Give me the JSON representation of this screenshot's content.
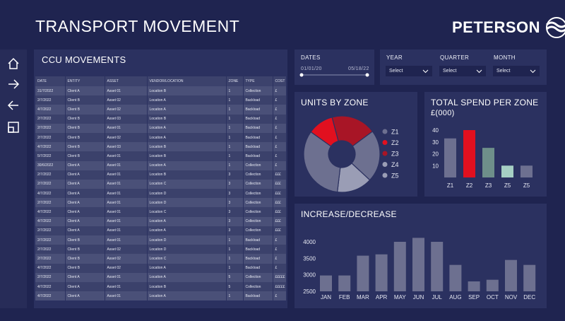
{
  "header": {
    "title": "TRANSPORT MOVEMENT",
    "brand": "PETERSON"
  },
  "nav": {
    "items": [
      "home-icon",
      "arrow-right-icon",
      "arrow-left-icon",
      "layout-icon"
    ]
  },
  "ccu": {
    "title": "CCU MOVEMENTS",
    "columns": [
      "DATE",
      "ENTITY",
      "ASSET",
      "VENDOR/LOCATION",
      "ZONE",
      "TYPE",
      "COST"
    ],
    "rows": [
      [
        "31/7/2022",
        "Client A",
        "Asset 01",
        "Location B",
        "1",
        "Collection",
        "£"
      ],
      [
        "2/7/2022",
        "Client B",
        "Asset 02",
        "Location A",
        "1",
        "Backload",
        "£"
      ],
      [
        "4/7/2022",
        "Client B",
        "Asset 02",
        "Location A",
        "1",
        "Backload",
        "£"
      ],
      [
        "2/7/2022",
        "Client B",
        "Asset 03",
        "Location B",
        "1",
        "Backload",
        "£"
      ],
      [
        "2/7/2022",
        "Client B",
        "Asset 01",
        "Location A",
        "1",
        "Backload",
        "£"
      ],
      [
        "2/7/2022",
        "Client B",
        "Asset 02",
        "Location A",
        "1",
        "Backload",
        "£"
      ],
      [
        "4/7/2022",
        "Client B",
        "Asset 03",
        "Location B",
        "1",
        "Backload",
        "£"
      ],
      [
        "5/7/2022",
        "Client B",
        "Asset 01",
        "Location B",
        "1",
        "Backload",
        "£"
      ],
      [
        "30/6/2022",
        "Client A",
        "Asset 01",
        "Location A",
        "1",
        "Collection",
        "£"
      ],
      [
        "2/7/2022",
        "Client A",
        "Asset 01",
        "Location B",
        "3",
        "Collection",
        "£££"
      ],
      [
        "2/7/2022",
        "Client A",
        "Asset 01",
        "Location C",
        "3",
        "Collection",
        "£££"
      ],
      [
        "4/7/2022",
        "Client A",
        "Asset 01",
        "Location D",
        "3",
        "Collection",
        "£££"
      ],
      [
        "2/7/2022",
        "Client A",
        "Asset 01",
        "Location D",
        "3",
        "Collection",
        "£££"
      ],
      [
        "4/7/2022",
        "Client A",
        "Asset 01",
        "Location C",
        "3",
        "Collection",
        "£££"
      ],
      [
        "4/7/2022",
        "Client A",
        "Asset 01",
        "Location A",
        "3",
        "Collection",
        "£££"
      ],
      [
        "2/7/2022",
        "Client A",
        "Asset 01",
        "Location A",
        "3",
        "Collection",
        "£££"
      ],
      [
        "2/7/2022",
        "Client B",
        "Asset 01",
        "Location D",
        "1",
        "Backload",
        "£"
      ],
      [
        "2/7/2022",
        "Client B",
        "Asset 02",
        "Location D",
        "1",
        "Backload",
        "£"
      ],
      [
        "2/7/2022",
        "Client B",
        "Asset 02",
        "Location C",
        "1",
        "Backload",
        "£"
      ],
      [
        "4/7/2022",
        "Client B",
        "Asset 02",
        "Location A",
        "1",
        "Backload",
        "£"
      ],
      [
        "2/7/2022",
        "Client A",
        "Asset 01",
        "Location A",
        "5",
        "Collection",
        "£££££"
      ],
      [
        "4/7/2022",
        "Client A",
        "Asset 01",
        "Location B",
        "5",
        "Collection",
        "£££££"
      ],
      [
        "4/7/2022",
        "Client A",
        "Asset 01",
        "Location A",
        "1",
        "Backload",
        "£"
      ]
    ]
  },
  "dates": {
    "label": "DATES",
    "start": "01/01/20",
    "end": "05/18/22"
  },
  "filters": {
    "year": {
      "label": "YEAR",
      "value": "Select"
    },
    "quarter": {
      "label": "QUARTER",
      "value": "Select"
    },
    "month": {
      "label": "MONTH",
      "value": "Select"
    }
  },
  "colors": {
    "bg": "#1f2450",
    "panel": "#2b3160",
    "red": "#e1101f",
    "darkred": "#a81526",
    "grey": "#6d7090",
    "lightgrey": "#9a9db5",
    "green": "#6e8f8a",
    "mint": "#a6cfc4"
  },
  "chart_data": [
    {
      "type": "pie",
      "title": "UNITS BY ZONE",
      "categories": [
        "Z1",
        "Z2",
        "Z3",
        "Z4",
        "Z5"
      ],
      "values": [
        33,
        11,
        19,
        15,
        22
      ],
      "legend_colors": [
        "#6d7090",
        "#e1101f",
        "#a81526",
        "#9a9db5",
        "#9a9db5"
      ],
      "legend": "right"
    },
    {
      "type": "bar",
      "title": "TOTAL SPEND PER ZONE",
      "subtitle": "£(000)",
      "categories": [
        "Z1",
        "Z2",
        "Z3",
        "Z5",
        "Z5"
      ],
      "values": [
        33,
        40,
        25,
        10,
        10
      ],
      "colors": [
        "#6d7090",
        "#e1101f",
        "#6e8f8a",
        "#a6cfc4",
        "#6d7090"
      ],
      "ylim": [
        0,
        40
      ],
      "yticks": [
        10,
        20,
        30,
        40
      ]
    },
    {
      "type": "bar",
      "title": "INCREASE/DECREASE",
      "categories": [
        "JAN",
        "FEB",
        "MAR",
        "APR",
        "MAY",
        "JUN",
        "JUL",
        "AUG",
        "SEP",
        "OCT",
        "NOV",
        "DEC"
      ],
      "values": [
        2980,
        2980,
        3580,
        3620,
        4000,
        4120,
        4000,
        3300,
        2800,
        2850,
        3450,
        3300
      ],
      "ylim": [
        2500,
        4000
      ],
      "yticks": [
        2500,
        3000,
        3500,
        4000
      ]
    }
  ]
}
